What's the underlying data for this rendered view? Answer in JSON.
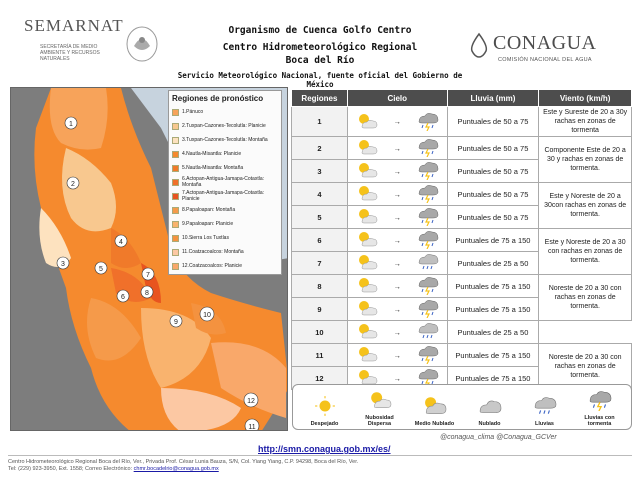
{
  "header": {
    "semarnat": "SEMARNAT",
    "semarnat_sub": "SECRETARÍA DE MEDIO AMBIENTE Y RECURSOS NATURALES",
    "org_line1": "Organismo de Cuenca Golfo Centro",
    "org_line2": "Centro Hidrometeorológico Regional",
    "org_line3": "Boca del Río",
    "smn_line": "Servicio Meteorológico Nacional, fuente oficial del Gobierno de México",
    "conagua": "CONAGUA",
    "conagua_sub": "COMISIÓN NACIONAL DEL AGUA"
  },
  "map_legend": {
    "title": "Regiones de pronóstico",
    "items": [
      {
        "label": "1.Pánuco",
        "color": "#f7a35a"
      },
      {
        "label": "2.Tuxpan-Cazones-Tecolutla: Planicie",
        "color": "#f8c88f"
      },
      {
        "label": "3.Tuxpan-Cazones-Tecolutla: Montaña",
        "color": "#fde2bf"
      },
      {
        "label": "4.Nautla-Misantla: Planicie",
        "color": "#f58a2e"
      },
      {
        "label": "5.Nautla-Misantla: Montaña",
        "color": "#f07a2a"
      },
      {
        "label": "6.Actopan-Antigua-Jamapa-Cotaxtla: Montaña",
        "color": "#f0702a"
      },
      {
        "label": "7.Actopan-Antigua-Jamapa-Cotaxtla: Planicie",
        "color": "#e8541f"
      },
      {
        "label": "8.Papaloapan: Montaña",
        "color": "#f59a4a"
      },
      {
        "label": "9.Papaloapan: Planicie",
        "color": "#f9b36e"
      },
      {
        "label": "10.Sierra Los Tuxtlas",
        "color": "#f4923f"
      },
      {
        "label": "11.Coatzacoalcos: Montaña",
        "color": "#fcc8a3"
      },
      {
        "label": "12.Coatzacoalcos: Planicie",
        "color": "#f9a86a"
      }
    ],
    "region_numbers": [
      "1",
      "2",
      "3",
      "4",
      "5",
      "6",
      "7",
      "8",
      "9",
      "10",
      "11",
      "12"
    ]
  },
  "table": {
    "headers": [
      "Regiones",
      "Cielo",
      "Lluvia (mm)",
      "Viento (km/h)"
    ],
    "rows": [
      {
        "region": "1",
        "lluvia": "Puntuales de 50 a 75"
      },
      {
        "region": "2",
        "lluvia": "Puntuales de 50 a 75"
      },
      {
        "region": "3",
        "lluvia": "Puntuales de 50 a 75"
      },
      {
        "region": "4",
        "lluvia": "Puntuales de 50 a 75"
      },
      {
        "region": "5",
        "lluvia": "Puntuales de 50 a 75"
      },
      {
        "region": "6",
        "lluvia": "Puntuales de 75 a 150"
      },
      {
        "region": "7",
        "lluvia": "Puntuales de 25 a 50"
      },
      {
        "region": "8",
        "lluvia": "Puntuales de 75 a 150"
      },
      {
        "region": "9",
        "lluvia": "Puntuales de 75 a 150"
      },
      {
        "region": "10",
        "lluvia": "Puntuales de 25 a 50"
      },
      {
        "region": "11",
        "lluvia": "Puntuales de 75 a 150"
      },
      {
        "region": "12",
        "lluvia": "Puntuales de 75 a 150"
      }
    ],
    "viento": [
      "Este y Sureste de 20 a 30y rachas en zonas de tormenta",
      "Componente Este de 20 a 30 y rachas en zonas de tormenta.",
      "Este y Noreste de 20 a 30con rachas en zonas de tormenta.",
      "Este y Noreste de 20 a 30 con rachas en zonas de tormenta.",
      "Noreste de 20 a 30 con rachas en zonas de tormenta.",
      "Noreste de 20 a 30 con rachas en zonas de tormenta."
    ]
  },
  "icon_legend": [
    {
      "label": "Despejado",
      "icon": "sun-icon"
    },
    {
      "label": "Nubosidad Dispersa",
      "icon": "sun-cloud-icon"
    },
    {
      "label": "Medio Nublado",
      "icon": "partly-cloudy-icon"
    },
    {
      "label": "Nublado",
      "icon": "cloud-icon"
    },
    {
      "label": "Lluvias",
      "icon": "rain-icon"
    },
    {
      "label": "Lluvias con tormenta",
      "icon": "storm-icon"
    }
  ],
  "footer": {
    "url": "http://smn.conagua.gob.mx/es/",
    "twitter": "@conagua_clima   @Conagua_GCVer",
    "address": "Centro Hidrometeorológico Regional Boca del Río, Ver., Privada Prof. César Lunia Bauza, S/N, Col. Yiang Yiang, C.P. 94298, Boca del Río, Ver.",
    "phone": "Tel: (229) 923-3950, Ext. 1558; Correo Electrónico:",
    "email": "chmr.bocadelrio@conagua.gob.mx"
  },
  "colors": {
    "header_dark": "#4d4d4d",
    "rain_blue": "#5b6fa8",
    "orange": "#f58a2e"
  }
}
